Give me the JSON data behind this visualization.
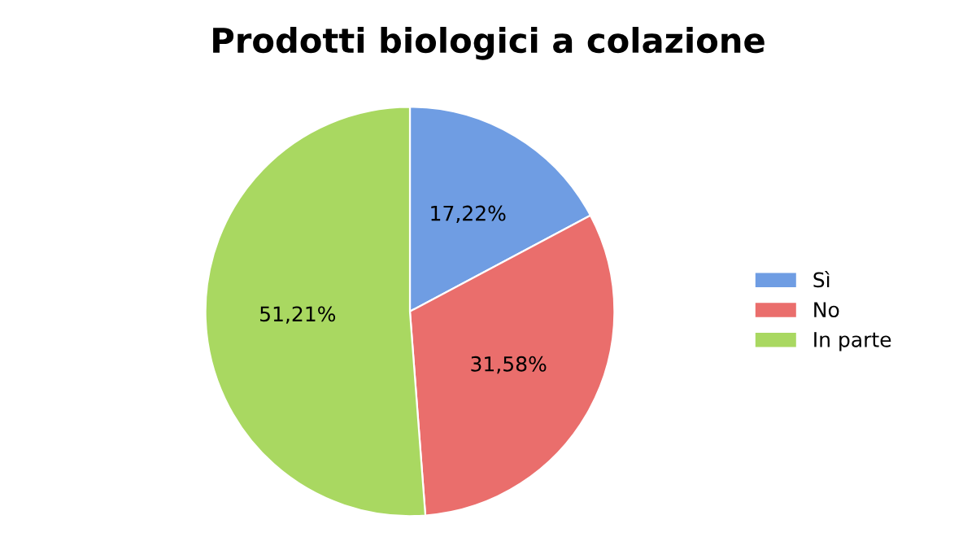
{
  "chart_data": {
    "type": "pie",
    "title": "Prodotti biologici a colazione",
    "categories": [
      "Sì",
      "No",
      "In parte"
    ],
    "values": [
      17.22,
      31.58,
      51.21
    ],
    "value_labels": [
      "17,22%",
      "31,58%",
      "51,21%"
    ],
    "colors": [
      "#6f9de3",
      "#ea6e6c",
      "#a9d861"
    ],
    "legend": "right"
  }
}
